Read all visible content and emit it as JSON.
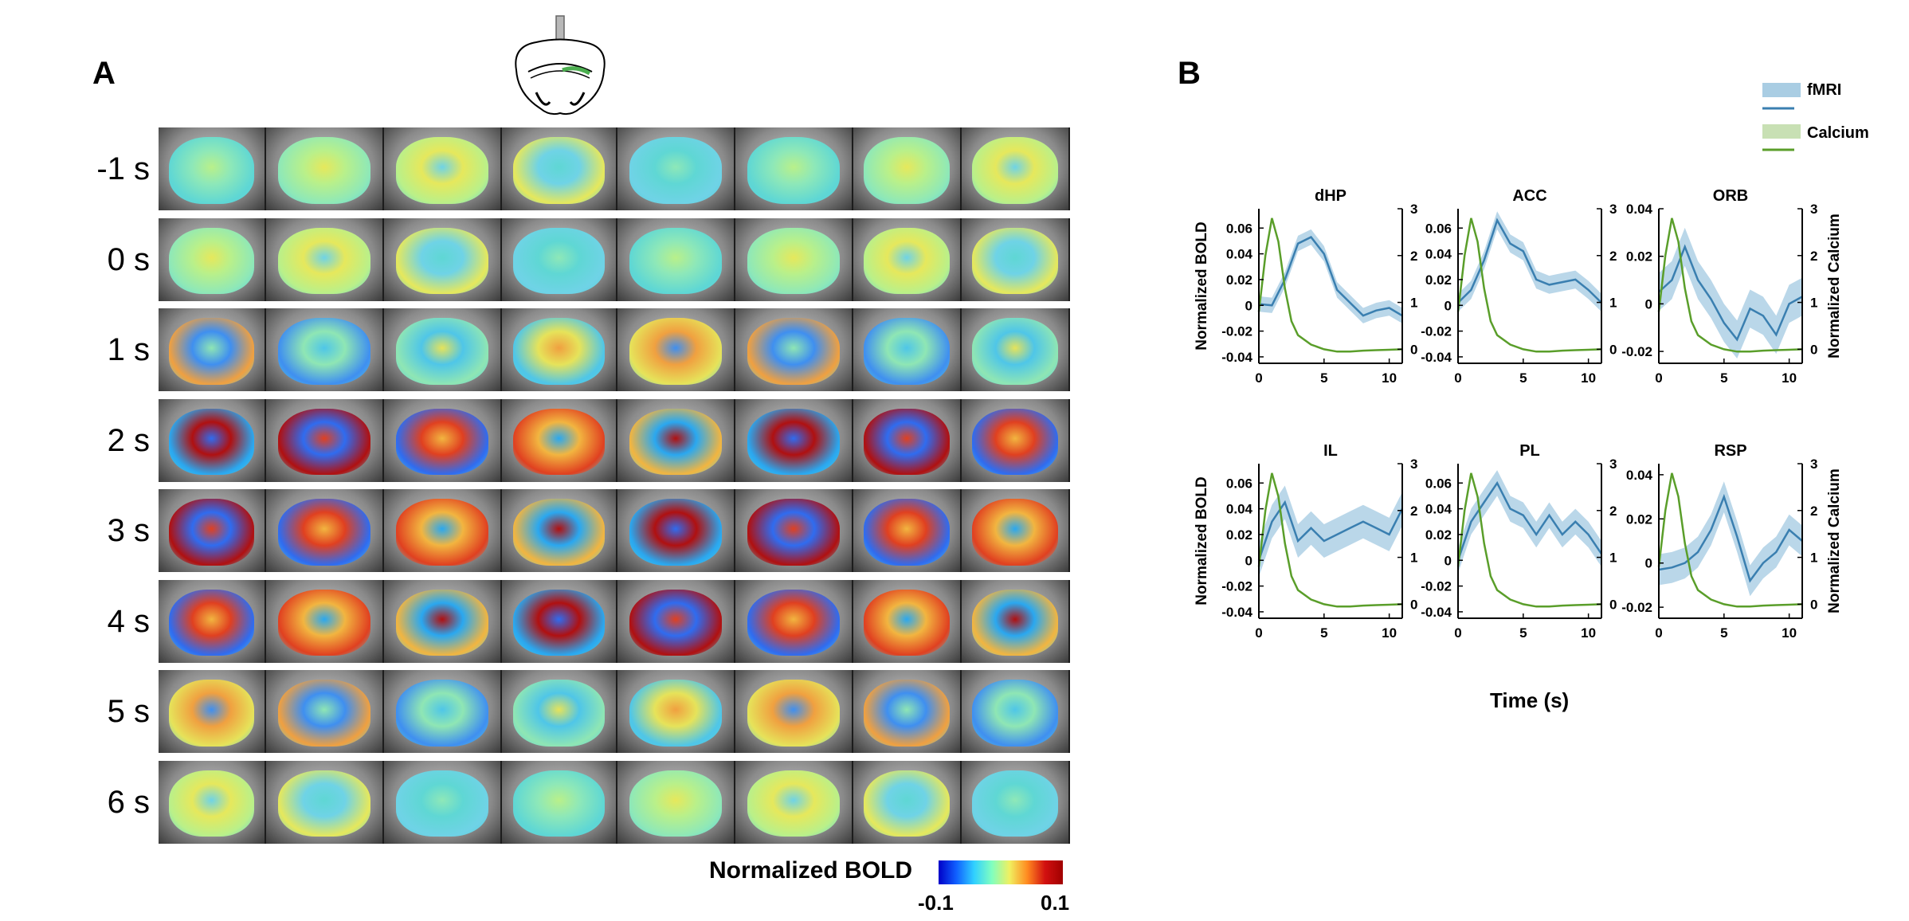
{
  "panels": {
    "a": "A",
    "b": "B"
  },
  "rows": [
    {
      "label": "-1 s",
      "level": "low"
    },
    {
      "label": "0 s",
      "level": "low"
    },
    {
      "label": "1 s",
      "level": "mid"
    },
    {
      "label": "2 s",
      "level": "high"
    },
    {
      "label": "3 s",
      "level": "high"
    },
    {
      "label": "4 s",
      "level": "high"
    },
    {
      "label": "5 s",
      "level": "mid"
    },
    {
      "label": "6 s",
      "level": "low"
    }
  ],
  "colorbar": {
    "title": "Normalized BOLD",
    "min": "-0.1",
    "max": "0.1"
  },
  "legend": {
    "fmri": "fMRI",
    "calcium": "Calcium"
  },
  "xlabel": "Time (s)",
  "colors": {
    "fmri_line": "#3a7fb0",
    "fmri_band": "#a9cde3",
    "calcium": "#5a9e2a"
  },
  "chart_data": [
    {
      "type": "line",
      "title": "dHP",
      "ylabel": "Normalized BOLD",
      "y2label": "",
      "xlim": [
        0,
        11
      ],
      "ylim": [
        -0.045,
        0.075
      ],
      "y2lim": [
        -0.3,
        3
      ],
      "xticks": [
        "0",
        "5",
        "10"
      ],
      "yticks": [
        "-0.04",
        "-0.02",
        "0",
        "0.02",
        "0.04",
        "0.06"
      ],
      "y2ticks": [
        "0",
        "1",
        "2",
        "3"
      ],
      "series": [
        {
          "name": "fMRI",
          "x": [
            0,
            1,
            2,
            3,
            4,
            5,
            6,
            7,
            8,
            9,
            10,
            11
          ],
          "values": [
            0.001,
            0.0,
            0.02,
            0.048,
            0.053,
            0.04,
            0.012,
            0.002,
            -0.008,
            -0.004,
            -0.002,
            -0.008
          ],
          "err": 0.006
        },
        {
          "name": "Calcium",
          "x": [
            0,
            0.5,
            1,
            1.5,
            2,
            2.5,
            3,
            4,
            5,
            6,
            7,
            8,
            9,
            10,
            11
          ],
          "values": [
            0.8,
            2.0,
            2.8,
            2.3,
            1.3,
            0.6,
            0.3,
            0.1,
            0.0,
            -0.05,
            -0.05,
            -0.03,
            -0.02,
            -0.01,
            0.0
          ]
        }
      ]
    },
    {
      "type": "line",
      "title": "ACC",
      "ylabel": "",
      "y2label": "",
      "xlim": [
        0,
        11
      ],
      "ylim": [
        -0.045,
        0.075
      ],
      "y2lim": [
        -0.3,
        3
      ],
      "xticks": [
        "0",
        "5",
        "10"
      ],
      "yticks": [
        "-0.04",
        "-0.02",
        "0",
        "0.02",
        "0.04",
        "0.06"
      ],
      "y2ticks": [
        "0",
        "1",
        "2",
        "3"
      ],
      "series": [
        {
          "name": "fMRI",
          "x": [
            0,
            1,
            2,
            3,
            4,
            5,
            6,
            7,
            8,
            9,
            10,
            11
          ],
          "values": [
            0.002,
            0.012,
            0.035,
            0.066,
            0.048,
            0.042,
            0.02,
            0.016,
            0.018,
            0.02,
            0.012,
            0.002
          ],
          "err": 0.007
        },
        {
          "name": "Calcium",
          "x": [
            0,
            0.5,
            1,
            1.5,
            2,
            2.5,
            3,
            4,
            5,
            6,
            7,
            8,
            9,
            10,
            11
          ],
          "values": [
            0.8,
            2.0,
            2.8,
            2.3,
            1.3,
            0.6,
            0.3,
            0.1,
            0.0,
            -0.05,
            -0.05,
            -0.03,
            -0.02,
            -0.01,
            0.0
          ]
        }
      ]
    },
    {
      "type": "line",
      "title": "ORB",
      "ylabel": "",
      "y2label": "Normalized Calcium",
      "xlim": [
        0,
        11
      ],
      "ylim": [
        -0.025,
        0.04
      ],
      "y2lim": [
        -0.3,
        3
      ],
      "xticks": [
        "0",
        "5",
        "10"
      ],
      "yticks": [
        "-0.02",
        "0",
        "0.02",
        "0.04"
      ],
      "y2ticks": [
        "0",
        "1",
        "2",
        "3"
      ],
      "series": [
        {
          "name": "fMRI",
          "x": [
            0,
            1,
            2,
            3,
            4,
            5,
            6,
            7,
            8,
            9,
            10,
            11
          ],
          "values": [
            0.005,
            0.01,
            0.024,
            0.01,
            0.002,
            -0.008,
            -0.015,
            -0.002,
            -0.005,
            -0.013,
            0.0,
            0.003
          ],
          "err": 0.008
        },
        {
          "name": "Calcium",
          "x": [
            0,
            0.5,
            1,
            1.5,
            2,
            2.5,
            3,
            4,
            5,
            6,
            7,
            8,
            9,
            10,
            11
          ],
          "values": [
            0.8,
            2.0,
            2.8,
            2.3,
            1.3,
            0.6,
            0.3,
            0.1,
            0.0,
            -0.05,
            -0.05,
            -0.03,
            -0.02,
            -0.01,
            0.0
          ]
        }
      ]
    },
    {
      "type": "line",
      "title": "IL",
      "ylabel": "Normalized BOLD",
      "y2label": "",
      "xlim": [
        0,
        11
      ],
      "ylim": [
        -0.045,
        0.075
      ],
      "y2lim": [
        -0.3,
        3
      ],
      "xticks": [
        "0",
        "5",
        "10"
      ],
      "yticks": [
        "-0.04",
        "-0.02",
        "0",
        "0.02",
        "0.04",
        "0.06"
      ],
      "y2ticks": [
        "0",
        "1",
        "2",
        "3"
      ],
      "series": [
        {
          "name": "fMRI",
          "x": [
            0,
            1,
            2,
            3,
            4,
            5,
            6,
            7,
            8,
            9,
            10,
            11
          ],
          "values": [
            0.0,
            0.03,
            0.045,
            0.015,
            0.025,
            0.015,
            0.02,
            0.025,
            0.03,
            0.025,
            0.02,
            0.04
          ],
          "err": 0.013
        },
        {
          "name": "Calcium",
          "x": [
            0,
            0.5,
            1,
            1.5,
            2,
            2.5,
            3,
            4,
            5,
            6,
            7,
            8,
            9,
            10,
            11
          ],
          "values": [
            0.8,
            2.0,
            2.8,
            2.3,
            1.3,
            0.6,
            0.3,
            0.1,
            0.0,
            -0.05,
            -0.05,
            -0.03,
            -0.02,
            -0.01,
            0.0
          ]
        }
      ]
    },
    {
      "type": "line",
      "title": "PL",
      "ylabel": "",
      "y2label": "",
      "xlim": [
        0,
        11
      ],
      "ylim": [
        -0.045,
        0.075
      ],
      "y2lim": [
        -0.3,
        3
      ],
      "xticks": [
        "0",
        "5",
        "10"
      ],
      "yticks": [
        "-0.04",
        "-0.02",
        "0",
        "0.02",
        "0.04",
        "0.06"
      ],
      "y2ticks": [
        "0",
        "1",
        "2",
        "3"
      ],
      "series": [
        {
          "name": "fMRI",
          "x": [
            0,
            1,
            2,
            3,
            4,
            5,
            6,
            7,
            8,
            9,
            10,
            11
          ],
          "values": [
            0.0,
            0.03,
            0.045,
            0.06,
            0.04,
            0.035,
            0.02,
            0.035,
            0.02,
            0.03,
            0.02,
            0.005
          ],
          "err": 0.01
        },
        {
          "name": "Calcium",
          "x": [
            0,
            0.5,
            1,
            1.5,
            2,
            2.5,
            3,
            4,
            5,
            6,
            7,
            8,
            9,
            10,
            11
          ],
          "values": [
            0.8,
            2.0,
            2.8,
            2.3,
            1.3,
            0.6,
            0.3,
            0.1,
            0.0,
            -0.05,
            -0.05,
            -0.03,
            -0.02,
            -0.01,
            0.0
          ]
        }
      ]
    },
    {
      "type": "line",
      "title": "RSP",
      "ylabel": "",
      "y2label": "Normalized Calcium",
      "xlim": [
        0,
        11
      ],
      "ylim": [
        -0.025,
        0.045
      ],
      "y2lim": [
        -0.3,
        3
      ],
      "xticks": [
        "0",
        "5",
        "10"
      ],
      "yticks": [
        "-0.02",
        "0",
        "0.02",
        "0.04"
      ],
      "y2ticks": [
        "0",
        "1",
        "2",
        "3"
      ],
      "series": [
        {
          "name": "fMRI",
          "x": [
            0,
            1,
            2,
            3,
            4,
            5,
            6,
            7,
            8,
            9,
            10,
            11
          ],
          "values": [
            -0.003,
            -0.002,
            0.0,
            0.005,
            0.015,
            0.03,
            0.012,
            -0.008,
            0.0,
            0.005,
            0.015,
            0.01
          ],
          "err": 0.007
        },
        {
          "name": "Calcium",
          "x": [
            0,
            0.5,
            1,
            1.5,
            2,
            2.5,
            3,
            4,
            5,
            6,
            7,
            8,
            9,
            10,
            11
          ],
          "values": [
            0.8,
            2.0,
            2.8,
            2.3,
            1.3,
            0.6,
            0.3,
            0.1,
            0.0,
            -0.05,
            -0.05,
            -0.03,
            -0.02,
            -0.01,
            0.0
          ]
        }
      ]
    }
  ]
}
